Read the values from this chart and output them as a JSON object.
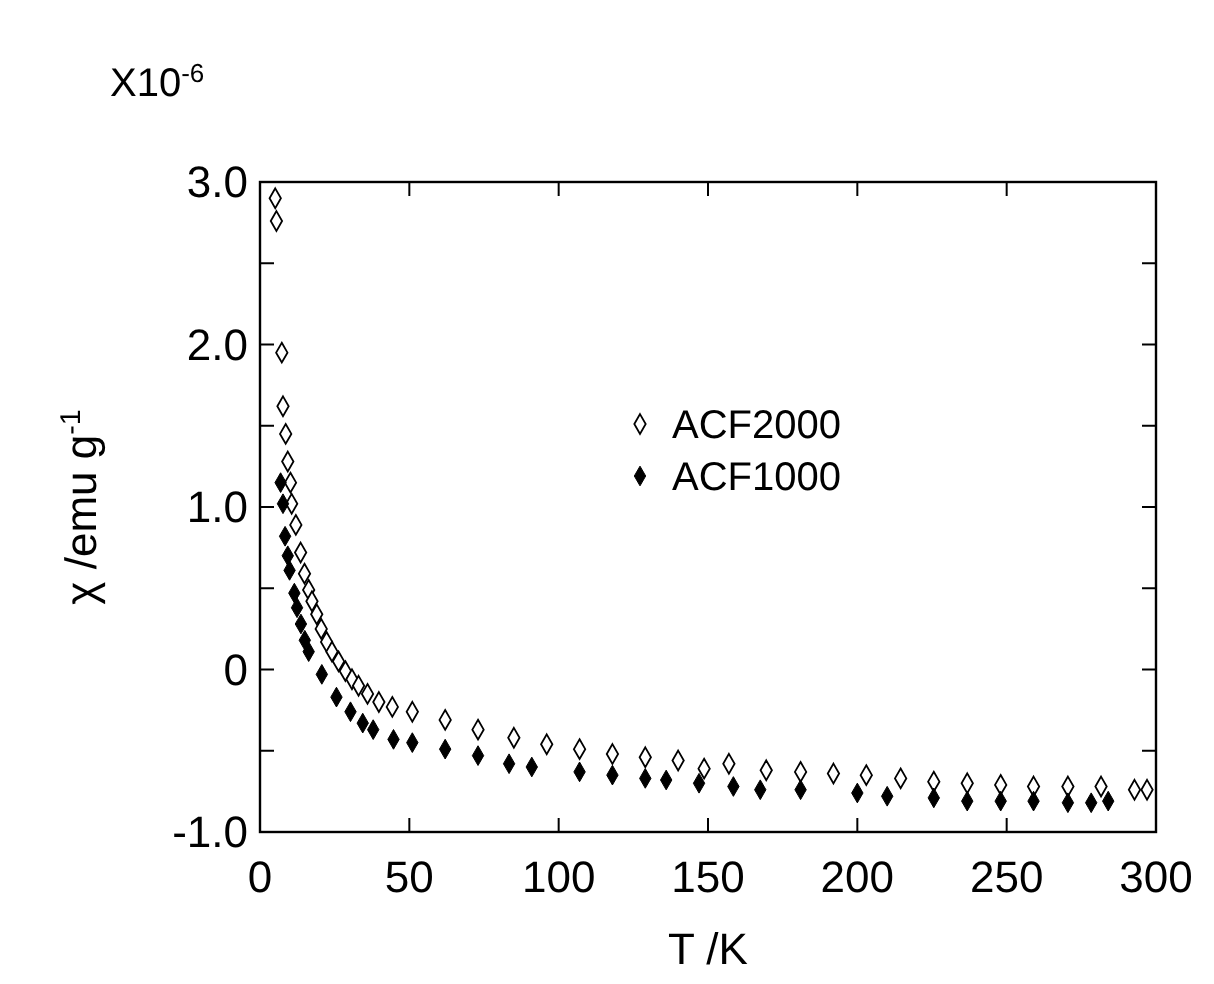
{
  "chart_data": {
    "type": "scatter",
    "xlabel": "T /K",
    "ylabel": "χ /emu g$^{-1}$",
    "annotations": [
      "X10$^{-6}$"
    ],
    "xlim": [
      0,
      300
    ],
    "xticks": [
      0,
      50,
      100,
      150,
      200,
      250,
      300
    ],
    "ylim": [
      -1,
      3
    ],
    "yticks": [
      {
        "value": -1,
        "label": "-1.0"
      },
      {
        "value": -0.5,
        "label": null
      },
      0,
      {
        "value": 0.5,
        "label": null
      },
      {
        "value": 1,
        "label": "1.0"
      },
      {
        "value": 1.5,
        "label": null
      },
      {
        "value": 2,
        "label": "2.0"
      },
      {
        "value": 2.5,
        "label": null
      },
      {
        "value": 3,
        "label": "3.0"
      }
    ],
    "grid": false,
    "legend": "right",
    "series": [
      {
        "name": "ACF2000",
        "color": "#000000",
        "marker": "diamond-open",
        "x": [
          5.1,
          5.5,
          7.3,
          7.7,
          8.6,
          9.3,
          10.2,
          10.6,
          12,
          13.6,
          14.9,
          16.3,
          17.4,
          19,
          20.5,
          22.3,
          24.1,
          26.3,
          28.6,
          30.8,
          33,
          36,
          39.8,
          44.3,
          51,
          62,
          73,
          85,
          96,
          107,
          118,
          129,
          140,
          148.7,
          157,
          169.5,
          181,
          192,
          203,
          214.5,
          225.6,
          236.8,
          248,
          259,
          270.5,
          281.6,
          292.8,
          297
        ],
        "values": [
          2.9,
          2.76,
          1.95,
          1.62,
          1.45,
          1.28,
          1.15,
          1.02,
          0.89,
          0.72,
          0.59,
          0.49,
          0.42,
          0.34,
          0.25,
          0.17,
          0.11,
          0.05,
          -0.01,
          -0.06,
          -0.1,
          -0.15,
          -0.2,
          -0.23,
          -0.26,
          -0.31,
          -0.37,
          -0.42,
          -0.46,
          -0.49,
          -0.52,
          -0.54,
          -0.56,
          -0.61,
          -0.58,
          -0.62,
          -0.63,
          -0.64,
          -0.65,
          -0.67,
          -0.69,
          -0.7,
          -0.71,
          -0.72,
          -0.72,
          -0.72,
          -0.74,
          -0.74
        ]
      },
      {
        "name": "ACF1000",
        "color": "#000000",
        "marker": "diamond",
        "x": [
          6.9,
          7.7,
          8.4,
          9.3,
          9.9,
          11.5,
          12.4,
          13.7,
          15,
          16.3,
          20.7,
          25.6,
          30.3,
          34.4,
          37.9,
          44.7,
          51,
          62,
          73,
          83.4,
          91,
          107,
          118,
          129,
          136,
          147,
          158.5,
          167.5,
          181,
          200,
          210,
          225.6,
          236.8,
          248,
          259,
          270.5,
          278.3,
          284
        ],
        "values": [
          1.15,
          1.02,
          0.82,
          0.7,
          0.61,
          0.47,
          0.38,
          0.28,
          0.18,
          0.11,
          -0.03,
          -0.17,
          -0.26,
          -0.33,
          -0.37,
          -0.43,
          -0.45,
          -0.49,
          -0.53,
          -0.58,
          -0.6,
          -0.63,
          -0.65,
          -0.67,
          -0.68,
          -0.7,
          -0.72,
          -0.74,
          -0.74,
          -0.76,
          -0.78,
          -0.79,
          -0.81,
          -0.81,
          -0.81,
          -0.82,
          -0.82,
          -0.81
        ]
      }
    ]
  }
}
